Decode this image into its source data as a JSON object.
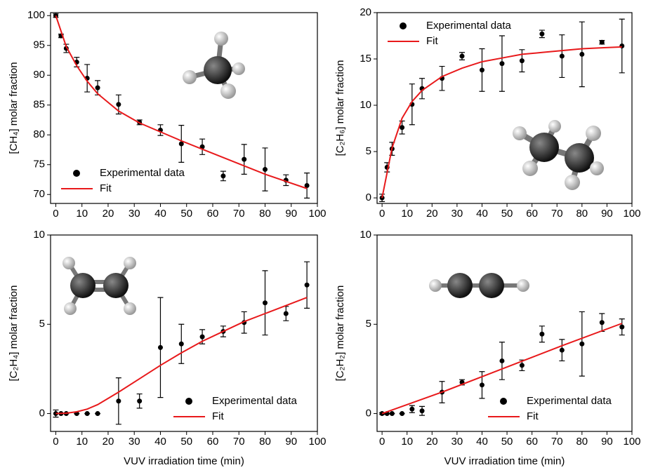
{
  "chart_data": [
    {
      "type": "scatter",
      "ylabel": "[CH₄] molar fraction",
      "legend": "lower left",
      "xlim": [
        -2,
        100
      ],
      "ylim": [
        68.5,
        100.5
      ],
      "xticks": [
        0,
        10,
        20,
        30,
        40,
        50,
        60,
        70,
        80,
        90,
        100
      ],
      "yticks": [
        70,
        75,
        80,
        85,
        90,
        95,
        100
      ],
      "series": [
        {
          "name": "Experimental data",
          "color": "#000000",
          "x": [
            0,
            2,
            4,
            8,
            12,
            16,
            24,
            32,
            40,
            48,
            56,
            64,
            72,
            80,
            88,
            96
          ],
          "values": [
            100,
            96.6,
            94.5,
            92.2,
            89.5,
            87.9,
            85.1,
            82.1,
            80.8,
            78.5,
            78.0,
            73.1,
            75.9,
            74.2,
            72.4,
            71.5
          ],
          "errors": [
            0.3,
            0.3,
            0.7,
            0.8,
            2.3,
            1.2,
            1.6,
            0.4,
            0.9,
            3.1,
            1.3,
            0.8,
            2.5,
            3.6,
            0.9,
            2.1
          ]
        },
        {
          "name": "Fit",
          "color": "#e8191b",
          "x": [
            0,
            4,
            8,
            12,
            16,
            24,
            32,
            40,
            48,
            56,
            64,
            72,
            80,
            88,
            96
          ],
          "values": [
            100,
            94.8,
            91.6,
            89.0,
            86.9,
            84.0,
            82.0,
            80.5,
            79.0,
            77.6,
            76.2,
            74.8,
            73.4,
            72.2,
            71.0
          ]
        }
      ]
    },
    {
      "type": "scatter",
      "ylabel": "[C₂H₆] molar fraction",
      "legend": "upper left",
      "xlim": [
        -2,
        100
      ],
      "ylim": [
        -0.6,
        20
      ],
      "xticks": [
        0,
        10,
        20,
        30,
        40,
        50,
        60,
        70,
        80,
        90,
        100
      ],
      "yticks": [
        0,
        5,
        10,
        15,
        20
      ],
      "series": [
        {
          "name": "Experimental data",
          "color": "#000000",
          "x": [
            0,
            2,
            4,
            8,
            12,
            16,
            24,
            32,
            40,
            48,
            56,
            64,
            72,
            80,
            88,
            96
          ],
          "values": [
            0,
            3.3,
            5.3,
            7.6,
            10.1,
            11.8,
            12.9,
            15.3,
            13.8,
            14.5,
            14.8,
            17.7,
            15.3,
            15.5,
            16.8,
            16.4
          ],
          "errors": [
            0.4,
            0.5,
            0.7,
            0.7,
            2.2,
            1.1,
            1.3,
            0.4,
            2.3,
            3.0,
            1.2,
            0.4,
            2.3,
            3.5,
            0.2,
            2.9
          ]
        },
        {
          "name": "Fit",
          "color": "#e8191b",
          "x": [
            0,
            4,
            8,
            12,
            16,
            24,
            32,
            40,
            48,
            56,
            64,
            72,
            80,
            88,
            96
          ],
          "values": [
            0,
            5.4,
            8.6,
            10.4,
            11.6,
            13.1,
            14.0,
            14.7,
            15.1,
            15.5,
            15.7,
            15.9,
            16.1,
            16.2,
            16.3
          ]
        }
      ]
    },
    {
      "type": "scatter",
      "ylabel": "[C₂H₄] molar fraction",
      "xlabel": "VUV irradiation time (min)",
      "legend": "lower right",
      "xlim": [
        -2,
        100
      ],
      "ylim": [
        -1,
        10
      ],
      "xticks": [
        0,
        10,
        20,
        30,
        40,
        50,
        60,
        70,
        80,
        90,
        100
      ],
      "yticks": [
        0,
        5,
        10
      ],
      "series": [
        {
          "name": "Experimental data",
          "color": "#000000",
          "x": [
            0,
            2,
            4,
            8,
            12,
            16,
            24,
            32,
            40,
            48,
            56,
            64,
            72,
            80,
            88,
            96
          ],
          "values": [
            0,
            0,
            0,
            0,
            0,
            0,
            0.7,
            0.7,
            3.7,
            3.9,
            4.3,
            4.6,
            5.1,
            6.2,
            5.6,
            7.2
          ],
          "errors": [
            0.2,
            0,
            0,
            0,
            0,
            0,
            1.3,
            0.4,
            2.8,
            1.1,
            0.4,
            0.3,
            0.6,
            1.8,
            0.4,
            1.3
          ]
        },
        {
          "name": "Fit",
          "color": "#e8191b",
          "x": [
            0,
            4,
            8,
            12,
            16,
            24,
            32,
            40,
            48,
            56,
            64,
            72,
            80,
            88,
            96
          ],
          "values": [
            0,
            0.02,
            0.1,
            0.25,
            0.5,
            1.2,
            1.95,
            2.7,
            3.4,
            4.05,
            4.6,
            5.15,
            5.6,
            6.05,
            6.5
          ]
        }
      ]
    },
    {
      "type": "scatter",
      "ylabel": "[C₂H₂] molar fraction",
      "xlabel": "VUV irradiation time (min)",
      "legend": "lower right",
      "xlim": [
        -2,
        100
      ],
      "ylim": [
        -1,
        10
      ],
      "xticks": [
        0,
        10,
        20,
        30,
        40,
        50,
        60,
        70,
        80,
        90,
        100
      ],
      "yticks": [
        0,
        5,
        10
      ],
      "series": [
        {
          "name": "Experimental data",
          "color": "#000000",
          "x": [
            0,
            2,
            4,
            8,
            12,
            16,
            24,
            32,
            40,
            48,
            56,
            64,
            72,
            80,
            88,
            96
          ],
          "values": [
            0,
            0,
            0,
            0,
            0.25,
            0.15,
            1.2,
            1.75,
            1.6,
            2.95,
            2.7,
            4.45,
            3.55,
            3.9,
            5.1,
            4.85
          ],
          "errors": [
            0.05,
            0,
            0,
            0,
            0.2,
            0.25,
            0.6,
            0.15,
            0.75,
            1.05,
            0.3,
            0.45,
            0.6,
            1.8,
            0.5,
            0.45
          ]
        },
        {
          "name": "Fit",
          "color": "#e8191b",
          "x": [
            0,
            24,
            48,
            72,
            96
          ],
          "values": [
            0,
            1.2,
            2.5,
            3.8,
            5.05
          ]
        }
      ]
    }
  ]
}
